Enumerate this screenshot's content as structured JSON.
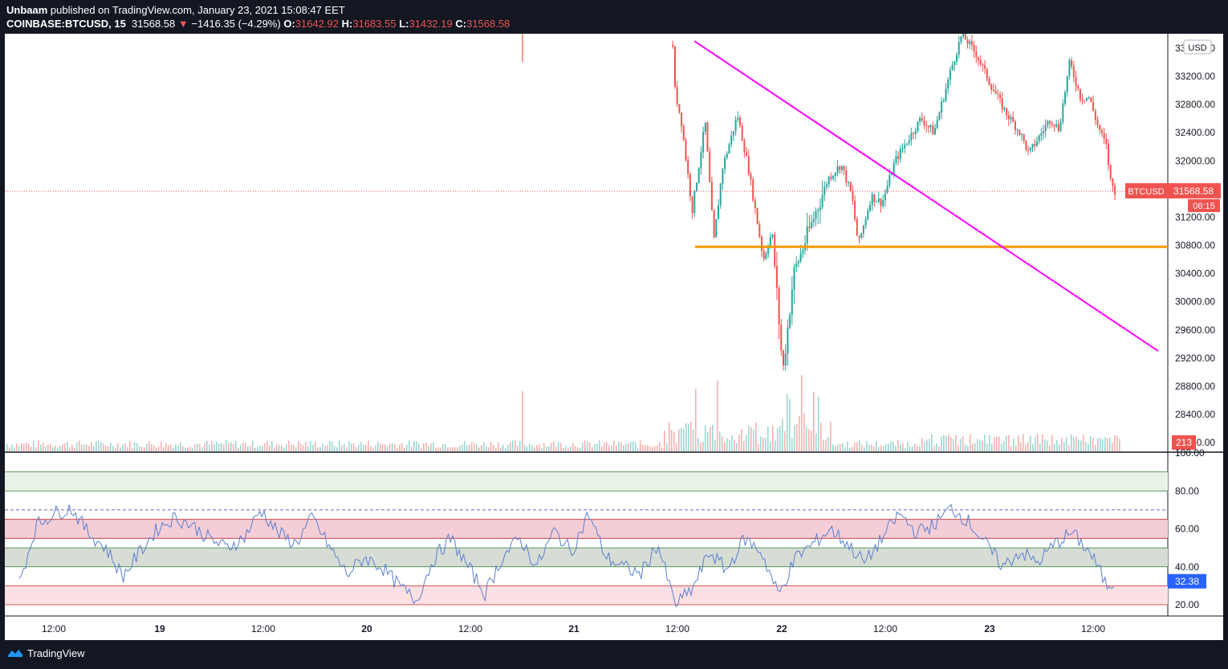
{
  "header": {
    "author": "Unbaam",
    "published_text": " published on TradingView.com, January 23, 2021 15:08:47 EET",
    "symbol": "COINBASE:BTCUSD, 15",
    "last": "31568.58",
    "down_arrow": "▼",
    "change": "−1416.35 (−4.29%)",
    "o_label": "O:",
    "o_value": "31642.92",
    "h_label": "H:",
    "h_value": "31683.55",
    "l_label": "L:",
    "l_value": "31432.19",
    "c_label": "C:",
    "c_value": "31568.58"
  },
  "footer": {
    "brand": "TradingView"
  },
  "colors": {
    "up": "#26a69a",
    "down": "#ef5350",
    "trendline": "#ff00ff",
    "support": "#ff9800",
    "rsi_line": "#5b7fcf",
    "last_tag": "#ef5350",
    "rsi_tag": "#2962ff",
    "axis_text": "#131722"
  },
  "chart_data": [
    {
      "type": "candlestick",
      "title": "",
      "currency_badge": "USD",
      "y_ticks": [
        "33200.00",
        "32800.00",
        "32400.00",
        "32000.00",
        "31200.00",
        "30800.00",
        "30400.00",
        "30000.00",
        "29600.00",
        "29200.00",
        "28800.00",
        "28400.00"
      ],
      "y_top_partial": "33600.00",
      "y_bottom_partial": "28000.00",
      "ylim": [
        28000,
        33800
      ],
      "x_ticks": [
        "12:00",
        "19",
        "12:00",
        "20",
        "12:00",
        "21",
        "12:00",
        "22",
        "12:00",
        "23",
        "12:00"
      ],
      "last_price": 31568.58,
      "last_label_symbol": "BTCUSD",
      "last_label_value": "31568.58",
      "countdown": "06:15",
      "volume_label": "213",
      "support_line": {
        "price": 30780
      },
      "trend_line": {
        "from": {
          "x": "2021-01-21 14:15",
          "price": 33700
        },
        "to": {
          "x": "2021-01-23 20:00",
          "price": 29300
        }
      },
      "series": [
        {
          "time": "2021-01-21 11:45",
          "price": 33650
        },
        {
          "time": "2021-01-21 12:00",
          "price": 33000
        },
        {
          "time": "2021-01-21 12:45",
          "price": 32550
        },
        {
          "time": "2021-01-21 14:00",
          "price": 31300
        },
        {
          "time": "2021-01-21 15:30",
          "price": 32550
        },
        {
          "time": "2021-01-21 16:30",
          "price": 30850
        },
        {
          "time": "2021-01-21 17:30",
          "price": 31900
        },
        {
          "time": "2021-01-21 19:15",
          "price": 32650
        },
        {
          "time": "2021-01-21 20:30",
          "price": 31900
        },
        {
          "time": "2021-01-21 22:15",
          "price": 30600
        },
        {
          "time": "2021-01-21 23:15",
          "price": 31000
        },
        {
          "time": "2021-01-22 00:30",
          "price": 29000
        },
        {
          "time": "2021-01-22 01:45",
          "price": 30400
        },
        {
          "time": "2021-01-22 03:30",
          "price": 31000
        },
        {
          "time": "2021-01-22 05:45",
          "price": 31750
        },
        {
          "time": "2021-01-22 07:15",
          "price": 31950
        },
        {
          "time": "2021-01-22 08:30",
          "price": 31500
        },
        {
          "time": "2021-01-22 09:15",
          "price": 30800
        },
        {
          "time": "2021-01-22 10:45",
          "price": 31500
        },
        {
          "time": "2021-01-22 12:00",
          "price": 31400
        },
        {
          "time": "2021-01-22 13:30",
          "price": 32000
        },
        {
          "time": "2021-01-22 15:00",
          "price": 32300
        },
        {
          "time": "2021-01-22 16:30",
          "price": 32600
        },
        {
          "time": "2021-01-22 18:00",
          "price": 32400
        },
        {
          "time": "2021-01-22 20:00",
          "price": 33300
        },
        {
          "time": "2021-01-22 21:15",
          "price": 33800
        },
        {
          "time": "2021-01-22 23:00",
          "price": 33500
        },
        {
          "time": "2021-01-23 00:30",
          "price": 33100
        },
        {
          "time": "2021-01-23 02:15",
          "price": 32700
        },
        {
          "time": "2021-01-23 04:00",
          "price": 32400
        },
        {
          "time": "2021-01-23 05:00",
          "price": 32100
        },
        {
          "time": "2021-01-23 07:30",
          "price": 32600
        },
        {
          "time": "2021-01-23 08:30",
          "price": 32450
        },
        {
          "time": "2021-01-23 09:45",
          "price": 33400
        },
        {
          "time": "2021-01-23 11:00",
          "price": 32900
        },
        {
          "time": "2021-01-23 12:00",
          "price": 32900
        },
        {
          "time": "2021-01-23 13:00",
          "price": 32500
        },
        {
          "time": "2021-01-23 14:00",
          "price": 32200
        },
        {
          "time": "2021-01-23 14:30",
          "price": 31700
        },
        {
          "time": "2021-01-23 15:00",
          "price": 31568.58
        }
      ]
    },
    {
      "type": "line",
      "title": "",
      "y_ticks": [
        "100.00",
        "80.00",
        "60.00",
        "40.00",
        "20.00"
      ],
      "ylim": [
        17,
        100
      ],
      "bands": [
        {
          "from": 80,
          "to": 90,
          "color": "#e8f3e5"
        },
        {
          "from": 55,
          "to": 65,
          "color": "#f4cdd6"
        },
        {
          "from": 40,
          "to": 50,
          "color": "#d7ddd5"
        },
        {
          "from": 20,
          "to": 30,
          "color": "#fde0e4"
        }
      ],
      "dashed_level": 70,
      "last_value": 32.38,
      "last_label": "32.38",
      "series": [
        {
          "time": "2021-01-18 08:00",
          "value": 32
        },
        {
          "time": "2021-01-18 10:00",
          "value": 62
        },
        {
          "time": "2021-01-18 12:00",
          "value": 68
        },
        {
          "time": "2021-01-18 14:00",
          "value": 71
        },
        {
          "time": "2021-01-18 16:00",
          "value": 58
        },
        {
          "time": "2021-01-18 18:00",
          "value": 50
        },
        {
          "time": "2021-01-18 20:00",
          "value": 35
        },
        {
          "time": "2021-01-18 22:00",
          "value": 48
        },
        {
          "time": "2021-01-19 00:00",
          "value": 60
        },
        {
          "time": "2021-01-19 02:00",
          "value": 66
        },
        {
          "time": "2021-01-19 04:00",
          "value": 62
        },
        {
          "time": "2021-01-19 06:00",
          "value": 55
        },
        {
          "time": "2021-01-19 08:00",
          "value": 50
        },
        {
          "time": "2021-01-19 10:00",
          "value": 55
        },
        {
          "time": "2021-01-19 12:00",
          "value": 70
        },
        {
          "time": "2021-01-19 14:00",
          "value": 58
        },
        {
          "time": "2021-01-19 16:00",
          "value": 52
        },
        {
          "time": "2021-01-19 18:00",
          "value": 66
        },
        {
          "time": "2021-01-19 20:00",
          "value": 50
        },
        {
          "time": "2021-01-19 22:00",
          "value": 36
        },
        {
          "time": "2021-01-20 00:00",
          "value": 45
        },
        {
          "time": "2021-01-20 02:00",
          "value": 40
        },
        {
          "time": "2021-01-20 04:00",
          "value": 30
        },
        {
          "time": "2021-01-20 06:00",
          "value": 22
        },
        {
          "time": "2021-01-20 08:00",
          "value": 44
        },
        {
          "time": "2021-01-20 10:00",
          "value": 55
        },
        {
          "time": "2021-01-20 12:00",
          "value": 40
        },
        {
          "time": "2021-01-20 14:00",
          "value": 26
        },
        {
          "time": "2021-01-20 16:00",
          "value": 45
        },
        {
          "time": "2021-01-20 18:00",
          "value": 55
        },
        {
          "time": "2021-01-20 20:00",
          "value": 40
        },
        {
          "time": "2021-01-20 22:00",
          "value": 59
        },
        {
          "time": "2021-01-21 00:00",
          "value": 48
        },
        {
          "time": "2021-01-21 02:00",
          "value": 68
        },
        {
          "time": "2021-01-21 04:00",
          "value": 45
        },
        {
          "time": "2021-01-21 06:00",
          "value": 40
        },
        {
          "time": "2021-01-21 08:00",
          "value": 36
        },
        {
          "time": "2021-01-21 10:00",
          "value": 52
        },
        {
          "time": "2021-01-21 12:00",
          "value": 20
        },
        {
          "time": "2021-01-21 14:00",
          "value": 28
        },
        {
          "time": "2021-01-21 16:00",
          "value": 48
        },
        {
          "time": "2021-01-21 18:00",
          "value": 38
        },
        {
          "time": "2021-01-21 20:00",
          "value": 55
        },
        {
          "time": "2021-01-21 22:00",
          "value": 48
        },
        {
          "time": "2021-01-22 00:00",
          "value": 25
        },
        {
          "time": "2021-01-22 02:00",
          "value": 45
        },
        {
          "time": "2021-01-22 04:00",
          "value": 52
        },
        {
          "time": "2021-01-22 06:00",
          "value": 60
        },
        {
          "time": "2021-01-22 08:00",
          "value": 52
        },
        {
          "time": "2021-01-22 10:00",
          "value": 42
        },
        {
          "time": "2021-01-22 12:00",
          "value": 55
        },
        {
          "time": "2021-01-22 14:00",
          "value": 68
        },
        {
          "time": "2021-01-22 16:00",
          "value": 58
        },
        {
          "time": "2021-01-22 18:00",
          "value": 62
        },
        {
          "time": "2021-01-22 20:00",
          "value": 71
        },
        {
          "time": "2021-01-22 22:00",
          "value": 64
        },
        {
          "time": "2021-01-23 00:00",
          "value": 52
        },
        {
          "time": "2021-01-23 02:00",
          "value": 40
        },
        {
          "time": "2021-01-23 04:00",
          "value": 48
        },
        {
          "time": "2021-01-23 06:00",
          "value": 42
        },
        {
          "time": "2021-01-23 08:00",
          "value": 52
        },
        {
          "time": "2021-01-23 10:00",
          "value": 58
        },
        {
          "time": "2021-01-23 12:00",
          "value": 48
        },
        {
          "time": "2021-01-23 13:00",
          "value": 40
        },
        {
          "time": "2021-01-23 14:00",
          "value": 30
        },
        {
          "time": "2021-01-23 15:00",
          "value": 32.38
        }
      ]
    }
  ]
}
